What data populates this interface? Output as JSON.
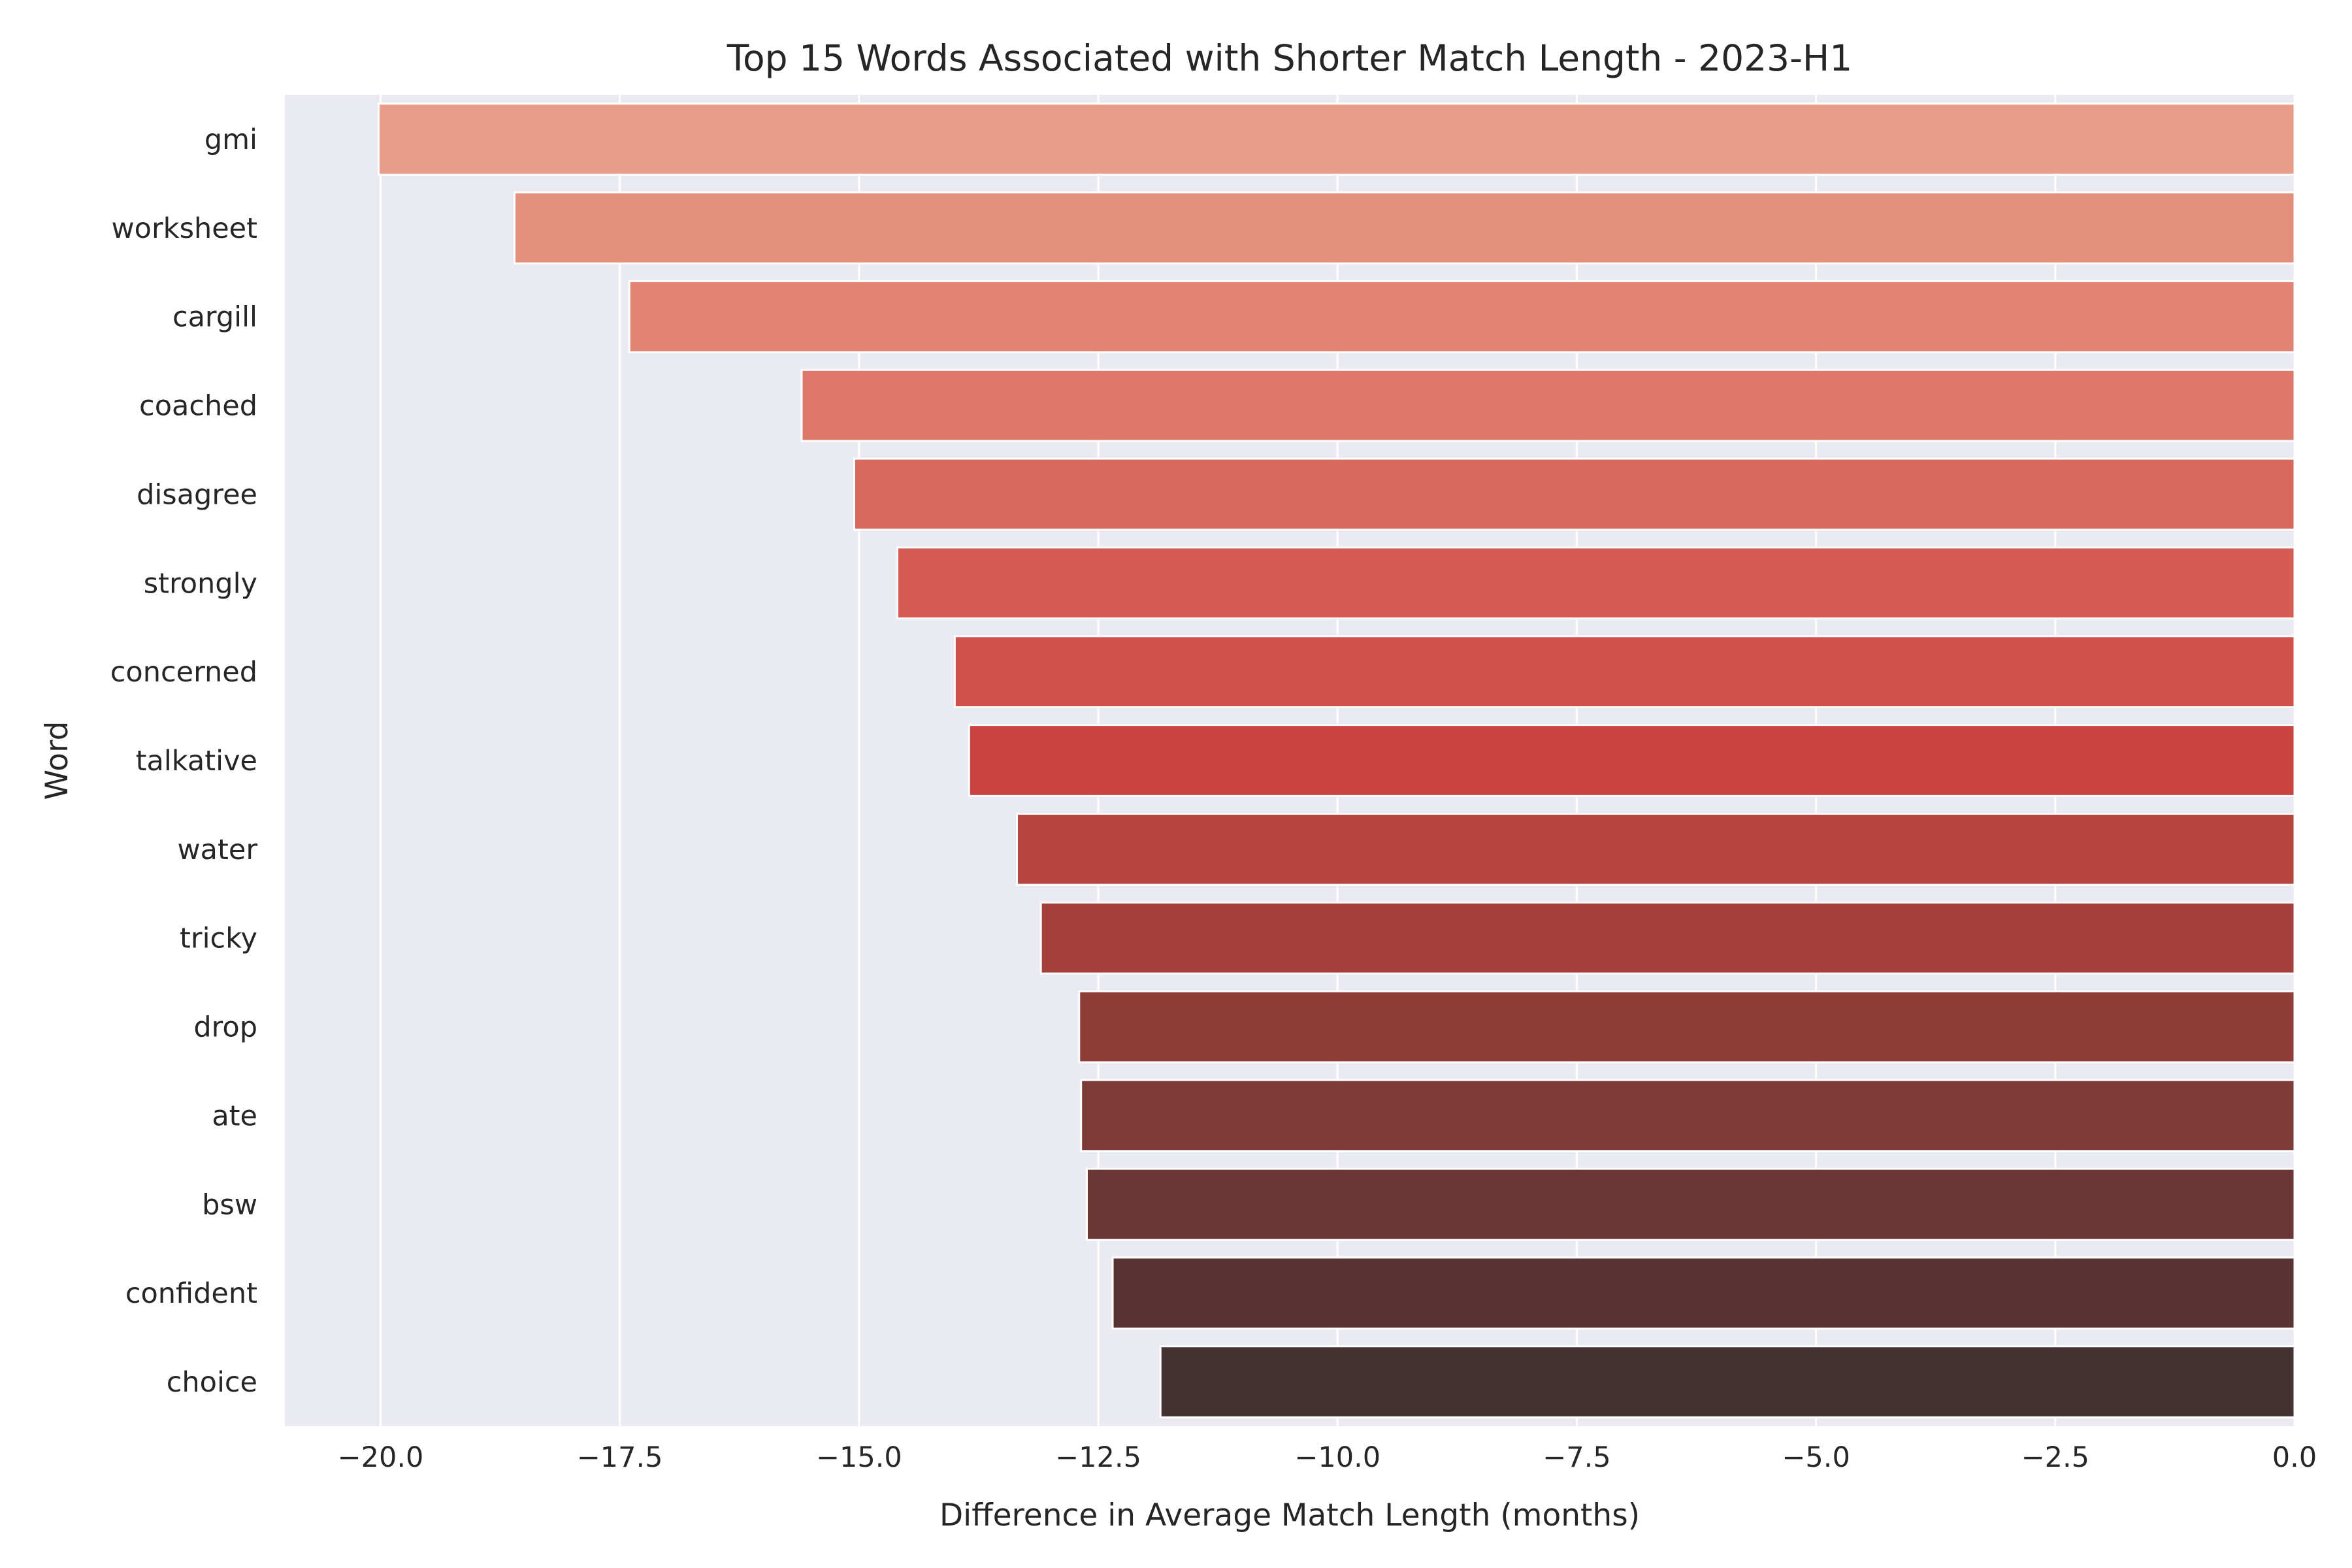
{
  "chart_data": {
    "type": "bar",
    "orientation": "horizontal",
    "title": "Top 15 Words Associated with Shorter Match Length - 2023-H1",
    "xlabel": "Difference in Average Match Length (months)",
    "ylabel": "Word",
    "categories": [
      "gmi",
      "worksheet",
      "cargill",
      "coached",
      "disagree",
      "strongly",
      "concerned",
      "talkative",
      "water",
      "tricky",
      "drop",
      "ate",
      "bsw",
      "confident",
      "choice"
    ],
    "values": [
      -20.02,
      -18.6,
      -17.4,
      -15.6,
      -15.05,
      -14.6,
      -14.0,
      -13.85,
      -13.35,
      -13.1,
      -12.7,
      -12.68,
      -12.62,
      -12.35,
      -11.85
    ],
    "xlim": [
      -21.0,
      0.0
    ],
    "xticks": [
      -20.0,
      -17.5,
      -15.0,
      -12.5,
      -10.0,
      -7.5,
      -5.0,
      -2.5,
      0.0
    ],
    "xtick_labels": [
      "−20.0",
      "−17.5",
      "−15.0",
      "−12.5",
      "−10.0",
      "−7.5",
      "−5.0",
      "−2.5",
      "0.0"
    ],
    "grid": true,
    "palette": "reds_d (light to dark)",
    "colors": [
      "#e99c88",
      "#e48f7b",
      "#e08373",
      "#dd786a",
      "#d8685c",
      "#d35b51",
      "#ce5048",
      "#c9443e",
      "#b7433e",
      "#a53f3b",
      "#903d3a",
      "#7e3c38",
      "#6a3735",
      "#573433",
      "#453132"
    ],
    "background": "#eaeaf2",
    "gridline_color": "#ffffff"
  }
}
